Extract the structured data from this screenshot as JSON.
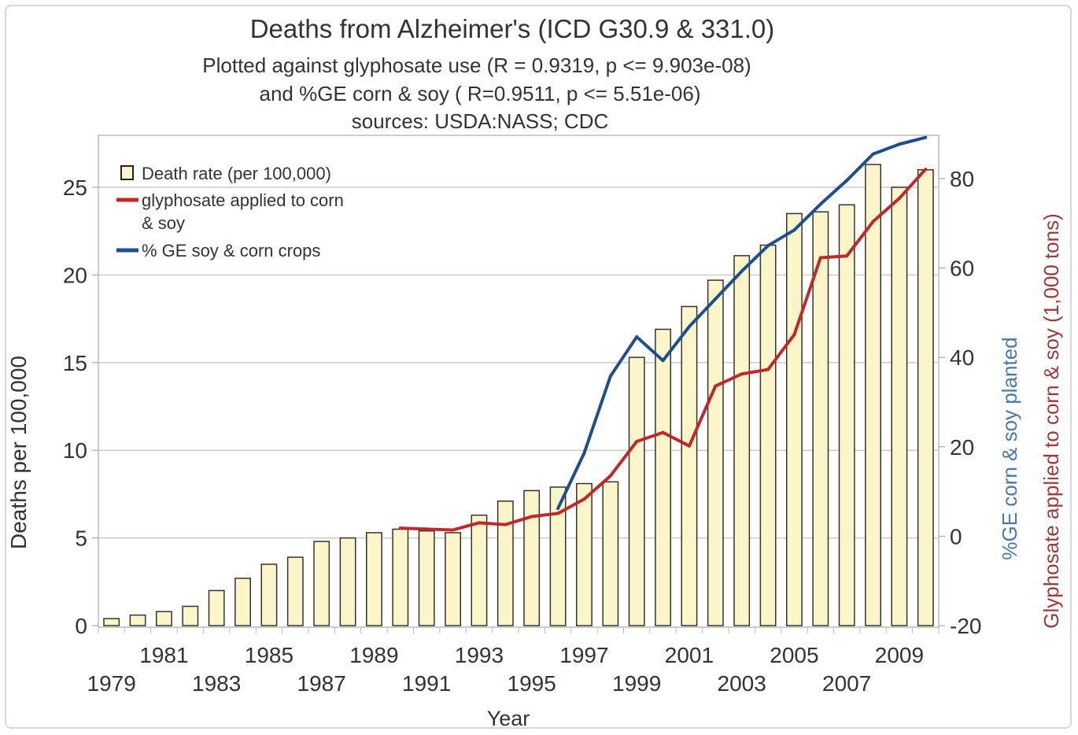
{
  "chart_data": {
    "type": "bar+line",
    "title": "Deaths from Alzheimer's (ICD G30.9 & 331.0)",
    "subtitle_lines": [
      "Plotted against glyphosate use (R = 0.9319, p <= 9.903e-08)",
      "and %GE corn & soy ( R=0.9511, p <= 5.51e-06)",
      "sources: USDA:NASS; CDC"
    ],
    "xlabel": "Year",
    "ylabel_left": "Deaths per 100,000",
    "ylabel_right_1": "%GE corn & soy planted",
    "ylabel_right_2": "Glyphosate applied to corn & soy (1,000 tons)",
    "ylim_left": [
      0,
      28
    ],
    "yticks_left": [
      0,
      5,
      10,
      15,
      20,
      25
    ],
    "ylim_right": [
      -20,
      90
    ],
    "yticks_right": [
      -20,
      0,
      20,
      40,
      60,
      80
    ],
    "xtick_labels_upper": [
      "1981",
      "1985",
      "1989",
      "1993",
      "1997",
      "2001",
      "2005",
      "2009"
    ],
    "xtick_labels_lower": [
      "1979",
      "1983",
      "1987",
      "1991",
      "1995",
      "1999",
      "2003",
      "2007"
    ],
    "grid": "horizontal",
    "legend_placement": "top-left",
    "categories": [
      1979,
      1980,
      1981,
      1982,
      1983,
      1984,
      1985,
      1986,
      1987,
      1988,
      1989,
      1990,
      1991,
      1992,
      1993,
      1994,
      1995,
      1996,
      1997,
      1998,
      1999,
      2000,
      2001,
      2002,
      2003,
      2004,
      2005,
      2006,
      2007,
      2008,
      2009,
      2010
    ],
    "series": [
      {
        "name": "Death rate (per 100,000)",
        "kind": "bar",
        "axis": "left",
        "color": "#fbf6c9",
        "values": [
          0.4,
          0.6,
          0.8,
          1.1,
          2.0,
          2.7,
          3.5,
          3.9,
          4.8,
          5.0,
          5.3,
          5.5,
          5.4,
          5.3,
          6.3,
          7.1,
          7.7,
          7.9,
          8.1,
          8.2,
          15.3,
          16.9,
          18.2,
          19.7,
          21.1,
          21.7,
          23.5,
          23.6,
          24.0,
          26.3,
          25.0,
          26.0
        ]
      },
      {
        "name": "glyphosate applied to corn & soy",
        "legend_lines": [
          "glyphosate applied to corn",
          "& soy"
        ],
        "kind": "line",
        "axis": "right",
        "color": "#c0282a",
        "x": [
          1990,
          1991,
          1992,
          1993,
          1994,
          1995,
          1996,
          1997,
          1998,
          1999,
          2000,
          2001,
          2002,
          2003,
          2004,
          2005,
          2006,
          2007,
          2008,
          2009,
          2010
        ],
        "values": [
          1.8,
          1.6,
          1.4,
          3.0,
          2.6,
          4.4,
          5.1,
          8.3,
          13.5,
          21.2,
          23.2,
          20.2,
          33.6,
          36.3,
          37.3,
          45.1,
          62.3,
          62.7,
          70.4,
          75.6,
          82.1
        ]
      },
      {
        "name": "% GE soy & corn crops",
        "kind": "line",
        "axis": "right",
        "color": "#1f4e8c",
        "x": [
          1996,
          1997,
          1998,
          1999,
          2000,
          2001,
          2002,
          2003,
          2004,
          2005,
          2006,
          2007,
          2008,
          2009,
          2010
        ],
        "values": [
          6.2,
          18.6,
          35.8,
          44.6,
          39.3,
          46.9,
          53.1,
          59.3,
          65.0,
          68.5,
          74.3,
          79.6,
          85.5,
          87.7,
          89.2
        ]
      }
    ]
  }
}
